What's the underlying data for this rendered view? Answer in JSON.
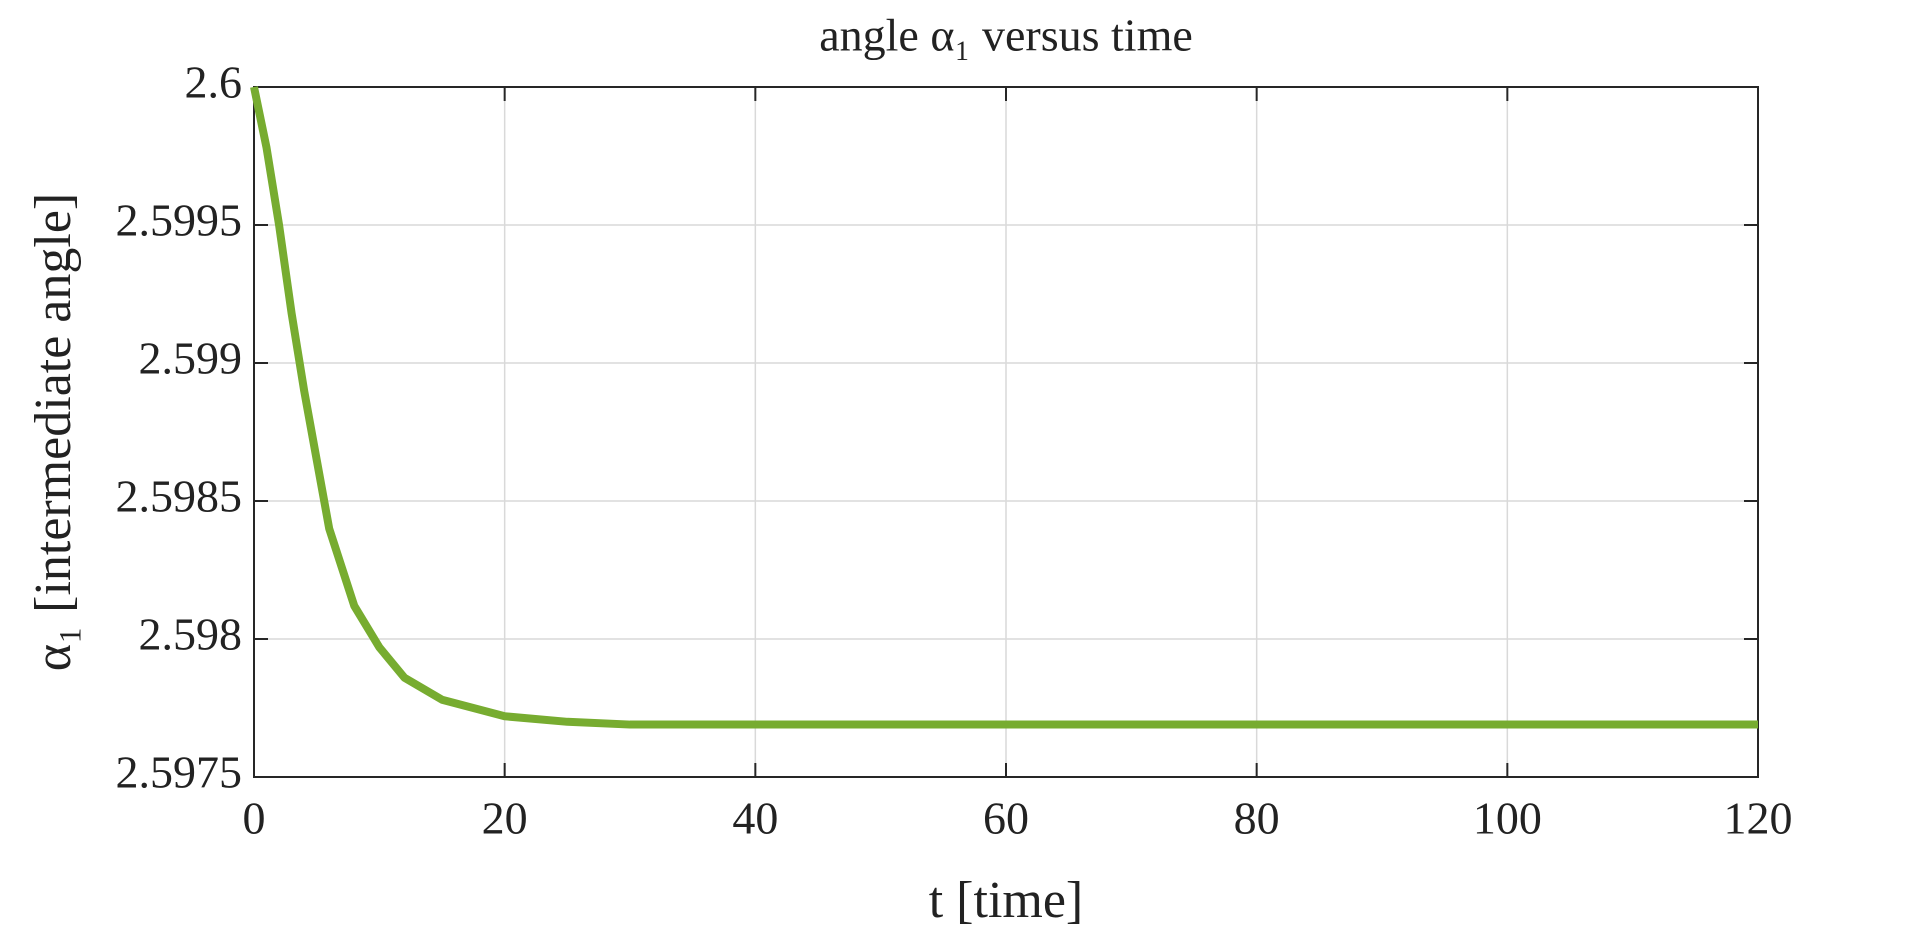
{
  "chart_data": {
    "type": "line",
    "title": "angle α₁ versus time",
    "xlabel": "t [time]",
    "ylabel": "α₁ [intermediate angle]",
    "x": [
      0,
      1,
      2,
      3,
      4,
      5,
      6,
      8,
      10,
      12,
      15,
      20,
      25,
      30,
      40,
      60,
      80,
      100,
      120
    ],
    "series": [
      {
        "name": "α₁",
        "color": "#77ac30",
        "values": [
          2.6,
          2.59978,
          2.5995,
          2.59918,
          2.5989,
          2.59865,
          2.5984,
          2.59812,
          2.59797,
          2.59786,
          2.59778,
          2.59772,
          2.5977,
          2.59769,
          2.59769,
          2.59769,
          2.59769,
          2.59769,
          2.59769
        ]
      }
    ],
    "xlim": [
      0,
      120
    ],
    "xticks": [
      0,
      20,
      40,
      60,
      80,
      100,
      120
    ],
    "ylim": [
      2.5975,
      2.6
    ],
    "yticks": [
      2.5975,
      2.598,
      2.5985,
      2.599,
      2.5995,
      {
        "value": 2.6,
        "label": "2.6"
      }
    ],
    "grid": true
  }
}
